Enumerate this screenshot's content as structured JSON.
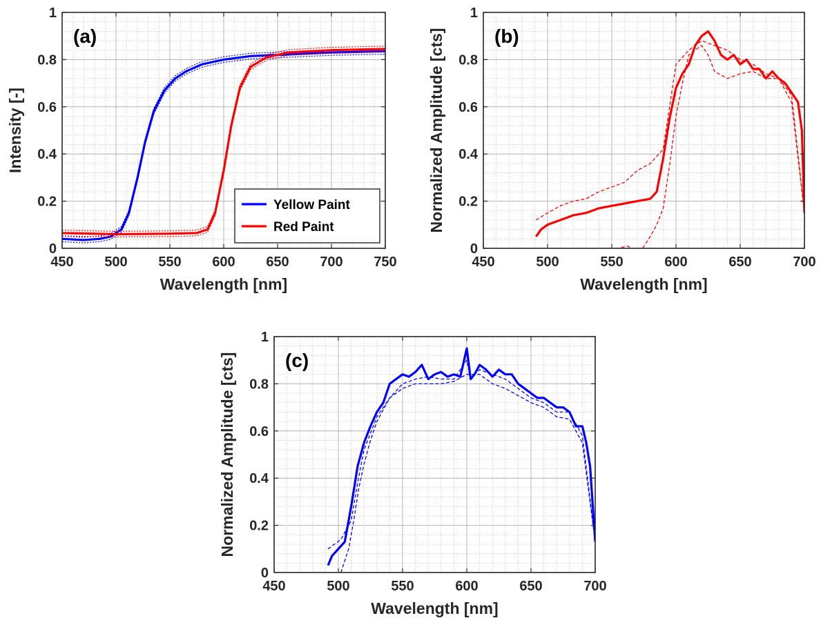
{
  "chart_data": [
    {
      "id": "a",
      "type": "line",
      "panel_label": "(a)",
      "xlabel": "Wavelength [nm]",
      "ylabel": "Intensity [-]",
      "xlim": [
        450,
        750
      ],
      "ylim": [
        0,
        1
      ],
      "xticks": [
        450,
        500,
        550,
        600,
        650,
        700,
        750
      ],
      "yticks": [
        0,
        0.2,
        0.4,
        0.6,
        0.8,
        1
      ],
      "ytick_labels": [
        "0",
        "0.2",
        "0.4",
        "0.6",
        "0.8",
        "1"
      ],
      "grid": true,
      "minor_grid": true,
      "legend": "bottom-right",
      "series": [
        {
          "name": "Yellow Paint",
          "color": "#0000ff",
          "x": [
            450,
            470,
            485,
            495,
            505,
            512,
            520,
            527,
            535,
            545,
            555,
            565,
            580,
            600,
            625,
            650,
            700,
            750
          ],
          "y": [
            0.04,
            0.035,
            0.04,
            0.05,
            0.08,
            0.15,
            0.3,
            0.45,
            0.58,
            0.67,
            0.72,
            0.75,
            0.78,
            0.8,
            0.815,
            0.82,
            0.83,
            0.835
          ],
          "band": 0.012
        },
        {
          "name": "Red Paint",
          "color": "#ff0000",
          "x": [
            450,
            500,
            550,
            575,
            585,
            592,
            600,
            607,
            615,
            625,
            640,
            660,
            700,
            750
          ],
          "y": [
            0.065,
            0.06,
            0.062,
            0.065,
            0.08,
            0.15,
            0.33,
            0.52,
            0.68,
            0.77,
            0.81,
            0.83,
            0.84,
            0.845
          ],
          "band": 0.012
        }
      ]
    },
    {
      "id": "b",
      "type": "line",
      "panel_label": "(b)",
      "xlabel": "Wavelength [nm]",
      "ylabel": "Normalized Amplitude [cts]",
      "xlim": [
        450,
        700
      ],
      "ylim": [
        0,
        1
      ],
      "xticks": [
        450,
        500,
        550,
        600,
        650,
        700
      ],
      "yticks": [
        0,
        0.2,
        0.4,
        0.6,
        0.8,
        1
      ],
      "ytick_labels": [
        "0",
        "0.2",
        "0.4",
        "0.6",
        "0.8",
        "1"
      ],
      "grid": true,
      "minor_grid": true,
      "series": [
        {
          "color": "#ff0000",
          "style": "solid",
          "x": [
            491,
            495,
            500,
            510,
            520,
            530,
            540,
            550,
            560,
            570,
            580,
            585,
            590,
            595,
            600,
            605,
            610,
            615,
            620,
            625,
            630,
            635,
            640,
            645,
            650,
            655,
            660,
            665,
            670,
            675,
            680,
            685,
            690,
            695,
            698,
            700
          ],
          "y": [
            0.05,
            0.08,
            0.1,
            0.12,
            0.14,
            0.15,
            0.17,
            0.18,
            0.19,
            0.2,
            0.21,
            0.24,
            0.38,
            0.55,
            0.68,
            0.74,
            0.78,
            0.86,
            0.9,
            0.92,
            0.88,
            0.82,
            0.8,
            0.82,
            0.78,
            0.8,
            0.76,
            0.76,
            0.72,
            0.75,
            0.72,
            0.7,
            0.66,
            0.62,
            0.5,
            0.15
          ]
        },
        {
          "color": "#ff0000",
          "style": "dashed",
          "x": [
            491,
            500,
            510,
            520,
            530,
            540,
            550,
            560,
            570,
            580,
            590,
            600,
            610,
            620,
            630,
            640,
            650,
            660,
            670,
            680,
            690,
            700
          ],
          "y": [
            0.12,
            0.15,
            0.18,
            0.2,
            0.21,
            0.24,
            0.26,
            0.28,
            0.33,
            0.36,
            0.42,
            0.78,
            0.84,
            0.88,
            0.86,
            0.84,
            0.8,
            0.78,
            0.74,
            0.72,
            0.62,
            0.15
          ]
        },
        {
          "color": "#ff0000",
          "style": "dashed",
          "x": [
            549,
            555,
            562,
            566,
            570,
            574,
            580,
            585,
            590,
            595,
            600,
            605,
            610,
            615,
            620,
            625,
            630,
            640,
            650,
            660,
            670,
            680,
            690,
            700
          ],
          "y": [
            0.0,
            0.0,
            0.01,
            0.0,
            0.0,
            0.0,
            0.05,
            0.1,
            0.17,
            0.35,
            0.56,
            0.7,
            0.82,
            0.84,
            0.86,
            0.82,
            0.75,
            0.72,
            0.74,
            0.75,
            0.72,
            0.72,
            0.65,
            0.15
          ]
        }
      ]
    },
    {
      "id": "c",
      "type": "line",
      "panel_label": "(c)",
      "xlabel": "Wavelength [nm]",
      "ylabel": "Normalized Amplitude [cts]",
      "xlim": [
        450,
        700
      ],
      "ylim": [
        0,
        1
      ],
      "xticks": [
        450,
        500,
        550,
        600,
        650,
        700
      ],
      "yticks": [
        0,
        0.2,
        0.4,
        0.6,
        0.8,
        1
      ],
      "ytick_labels": [
        "0",
        "0.2",
        "0.4",
        "0.6",
        "0.8",
        "1"
      ],
      "grid": true,
      "minor_grid": true,
      "series": [
        {
          "color": "#0000ff",
          "style": "solid",
          "x": [
            492,
            495,
            500,
            505,
            510,
            515,
            520,
            525,
            530,
            535,
            540,
            545,
            550,
            555,
            560,
            565,
            570,
            575,
            580,
            585,
            590,
            595,
            600,
            603,
            606,
            610,
            615,
            620,
            625,
            630,
            635,
            640,
            645,
            650,
            655,
            660,
            665,
            670,
            675,
            680,
            685,
            690,
            693,
            696,
            700
          ],
          "y": [
            0.03,
            0.07,
            0.1,
            0.13,
            0.28,
            0.45,
            0.55,
            0.62,
            0.68,
            0.72,
            0.8,
            0.82,
            0.84,
            0.83,
            0.85,
            0.88,
            0.82,
            0.84,
            0.85,
            0.83,
            0.84,
            0.83,
            0.95,
            0.82,
            0.84,
            0.88,
            0.86,
            0.83,
            0.86,
            0.84,
            0.84,
            0.8,
            0.78,
            0.76,
            0.74,
            0.74,
            0.72,
            0.7,
            0.7,
            0.68,
            0.62,
            0.62,
            0.55,
            0.45,
            0.13
          ]
        },
        {
          "color": "#0000ff",
          "style": "dashed",
          "x": [
            492,
            497,
            502,
            506,
            510,
            515,
            520,
            530,
            540,
            550,
            560,
            570,
            580,
            590,
            600,
            603,
            606,
            610,
            620,
            630,
            640,
            650,
            660,
            670,
            680,
            690,
            700
          ],
          "y": [
            0.1,
            0.12,
            0.14,
            0.18,
            0.22,
            0.38,
            0.52,
            0.66,
            0.74,
            0.8,
            0.82,
            0.83,
            0.82,
            0.82,
            0.9,
            0.82,
            0.84,
            0.86,
            0.84,
            0.82,
            0.78,
            0.74,
            0.72,
            0.68,
            0.68,
            0.58,
            0.13
          ]
        },
        {
          "color": "#0000ff",
          "style": "dashed",
          "x": [
            502,
            505,
            508,
            512,
            516,
            520,
            525,
            530,
            540,
            550,
            560,
            570,
            580,
            590,
            600,
            610,
            620,
            630,
            640,
            650,
            660,
            670,
            680,
            690,
            700
          ],
          "y": [
            0.0,
            0.05,
            0.1,
            0.22,
            0.36,
            0.46,
            0.56,
            0.64,
            0.74,
            0.78,
            0.8,
            0.8,
            0.8,
            0.81,
            0.84,
            0.84,
            0.8,
            0.78,
            0.75,
            0.72,
            0.7,
            0.66,
            0.65,
            0.55,
            0.13
          ]
        }
      ]
    }
  ]
}
